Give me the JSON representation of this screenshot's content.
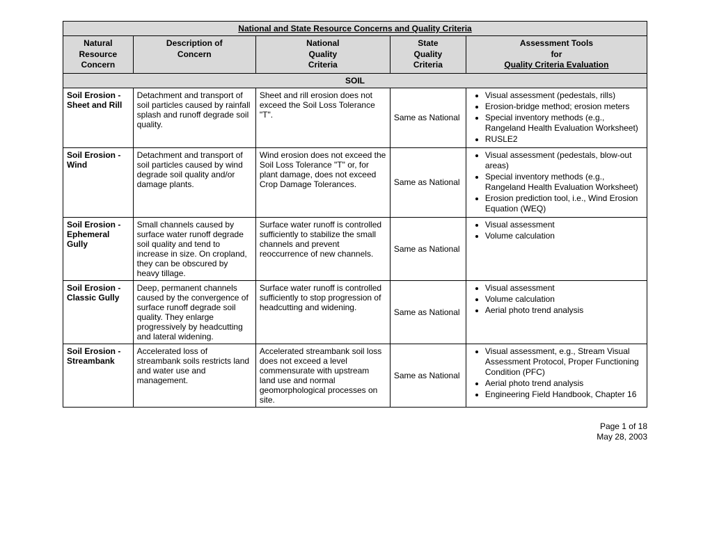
{
  "table": {
    "title": "National and State Resource Concerns and Quality Criteria",
    "headers": {
      "col0": "Natural\nResource\nConcern",
      "col1": "Description of\nConcern",
      "col2": "National\nQuality\nCriteria",
      "col3": "State\nQuality\nCriteria",
      "col4_line1": "Assessment Tools",
      "col4_line2": "for",
      "col4_line3": "Quality Criteria Evaluation"
    },
    "section": "SOIL",
    "rows": [
      {
        "concern": "Soil Erosion - Sheet and Rill",
        "description": "Detachment and transport of soil particles caused by rainfall splash and runoff degrade soil quality.",
        "national": "Sheet and rill erosion does not exceed the Soil Loss Tolerance \"T\".",
        "state": "Same as  National",
        "tools": [
          "Visual assessment (pedestals, rills)",
          "Erosion-bridge method; erosion meters",
          "Special inventory methods (e.g., Rangeland Health Evaluation Worksheet)",
          "RUSLE2"
        ]
      },
      {
        "concern": "Soil Erosion - Wind",
        "description": "Detachment and transport of soil particles caused by wind degrade soil quality and/or damage plants.",
        "national": "Wind erosion does not exceed the Soil Loss Tolerance \"T\" or, for plant damage, does not exceed Crop Damage Tolerances.",
        "state": "Same as  National",
        "tools": [
          "Visual assessment (pedestals, blow-out areas)",
          "Special inventory methods (e.g., Rangeland Health Evaluation Worksheet)",
          "Erosion prediction tool, i.e., Wind Erosion Equation (WEQ)"
        ]
      },
      {
        "concern": "Soil Erosion - Ephemeral Gully",
        "description": "Small channels caused by surface water runoff degrade soil quality and tend to increase in size.  On cropland, they can be obscured by heavy tillage.",
        "national": "Surface water runoff is controlled sufficiently to stabilize the small channels and prevent reoccurrence of new channels.",
        "state": "Same as  National",
        "tools": [
          "Visual assessment",
          "Volume calculation"
        ]
      },
      {
        "concern": "Soil Erosion - Classic Gully",
        "description": "Deep, permanent channels caused by the convergence of surface runoff degrade soil quality.  They enlarge progressively by headcutting and lateral widening.",
        "national": "Surface water runoff is controlled sufficiently to stop progression of headcutting and widening.",
        "state": "Same as  National",
        "tools": [
          "Visual assessment",
          "Volume calculation",
          "Aerial photo trend analysis"
        ]
      },
      {
        "concern": "Soil Erosion - Streambank",
        "description": "Accelerated loss of streambank soils restricts land and water use and management.",
        "national": "Accelerated streambank soil loss does not exceed a level commensurate with upstream land use and normal geomorphological processes on site.",
        "state": "Same as  National",
        "tools": [
          "Visual assessment, e.g., Stream Visual Assessment Protocol, Proper Functioning Condition (PFC)",
          "Aerial photo trend analysis",
          "Engineering Field Handbook, Chapter 16"
        ]
      }
    ]
  },
  "footer": {
    "page": "Page 1 of 18",
    "date": "May 28, 2003"
  }
}
